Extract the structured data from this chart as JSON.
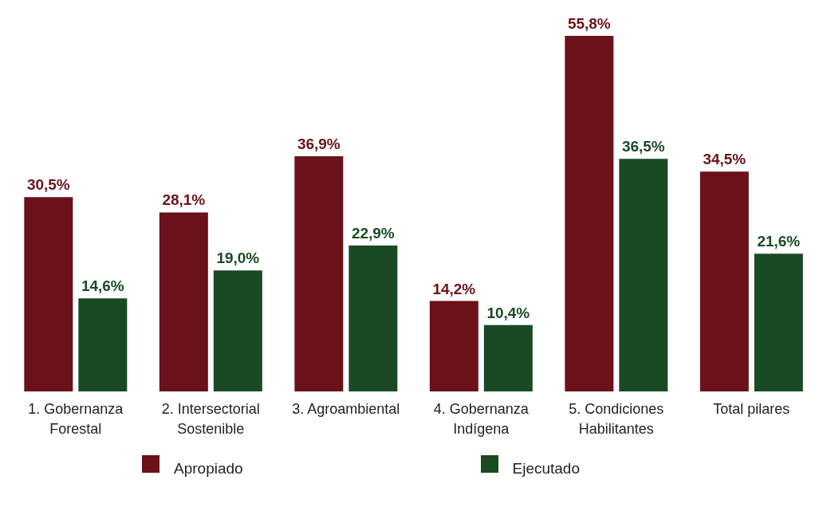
{
  "chart_data": {
    "type": "bar",
    "relative": false,
    "categories": [
      "1. Gobernanza Forestal",
      "2. Intersectorial Sostenible",
      "3. Agroambiental",
      "4. Gobernanza Indígena",
      "5. Condiciones Habilitantes",
      "Total pilares"
    ],
    "series": [
      {
        "name": "Apropiado",
        "color": "#6b1119",
        "values": [
          30.5,
          28.1,
          36.9,
          14.2,
          55.8,
          34.5
        ],
        "value_labels": [
          "30,5%",
          "28,1%",
          "36,9%",
          "14,2%",
          "55,8%",
          "34,5%"
        ]
      },
      {
        "name": "Ejecutado",
        "color": "#1a4a24",
        "values": [
          14.6,
          19.0,
          22.9,
          10.4,
          36.5,
          21.6
        ],
        "value_labels": [
          "14,6%",
          "19,0%",
          "22,9%",
          "10,4%",
          "36,5%",
          "21,6%"
        ]
      }
    ],
    "legend": "bottom",
    "grid": false
  }
}
